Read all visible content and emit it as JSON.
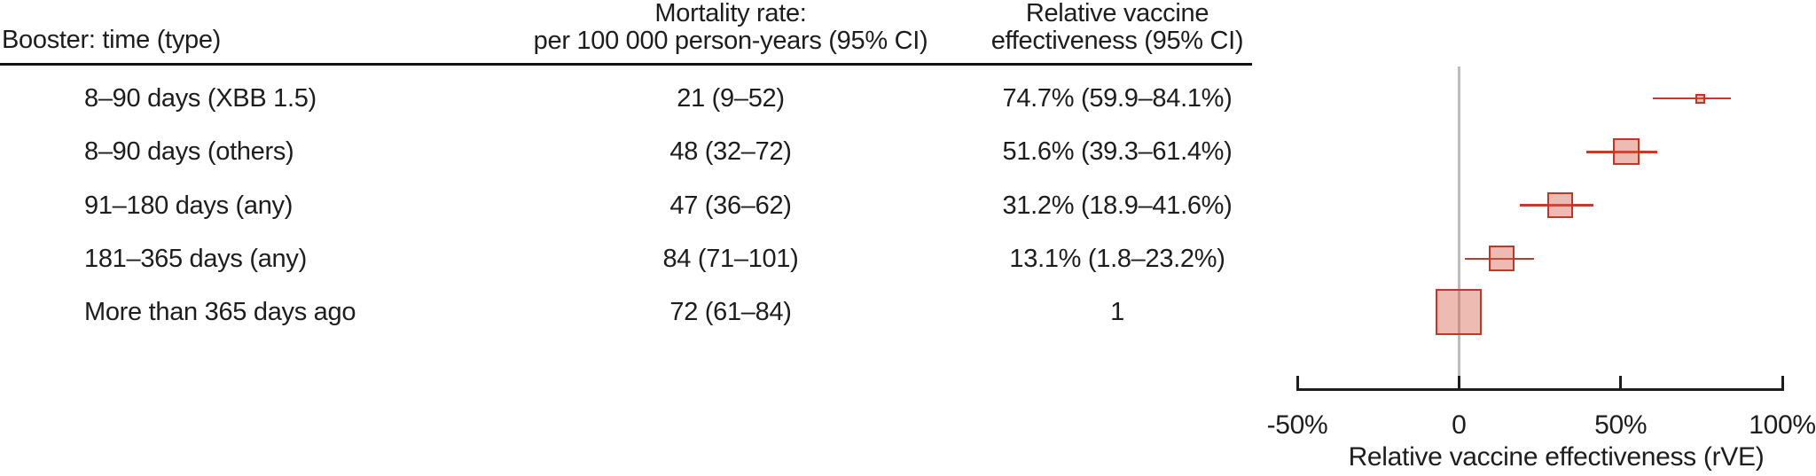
{
  "table": {
    "col1_header": "Booster: time (type)",
    "col2_header_line1": "Mortality rate:",
    "col2_header_line2": "per 100 000 person-years (95% CI)",
    "col3_header_line1": "Relative vaccine",
    "col3_header_line2": "effectiveness (95% CI)",
    "rows": [
      {
        "label": "8–90 days (XBB 1.5)",
        "mortality": "21 (9–52)",
        "rve": "74.7% (59.9–84.1%)"
      },
      {
        "label": "8–90 days (others)",
        "mortality": "48 (32–72)",
        "rve": "51.6% (39.3–61.4%)"
      },
      {
        "label": "91–180 days (any)",
        "mortality": "47 (36–62)",
        "rve": "31.2% (18.9–41.6%)"
      },
      {
        "label": "181–365 days (any)",
        "mortality": "84 (71–101)",
        "rve": "13.1% (1.8–23.2%)"
      },
      {
        "label": "More than 365 days ago",
        "mortality": "72 (61–84)",
        "rve": "1"
      }
    ]
  },
  "chart_data": {
    "type": "scatter",
    "subtype": "forest-plot",
    "xlabel": "Relative vaccine effectiveness (rVE)",
    "xlim": [
      -50,
      100
    ],
    "x_tick_values": [
      -50,
      0,
      50,
      100
    ],
    "x_tick_labels": [
      "-50%",
      "0",
      "50%",
      "100%"
    ],
    "reference_line_x": 0,
    "series": [
      {
        "label": "8–90 days (XBB 1.5)",
        "estimate": 74.7,
        "ci_low": 59.9,
        "ci_high": 84.1,
        "marker_size_px": 11,
        "has_ci": true
      },
      {
        "label": "8–90 days (others)",
        "estimate": 51.6,
        "ci_low": 39.3,
        "ci_high": 61.4,
        "marker_size_px": 30,
        "has_ci": true
      },
      {
        "label": "91–180 days (any)",
        "estimate": 31.2,
        "ci_low": 18.9,
        "ci_high": 41.6,
        "marker_size_px": 29,
        "has_ci": true
      },
      {
        "label": "181–365 days (any)",
        "estimate": 13.1,
        "ci_low": 1.8,
        "ci_high": 23.2,
        "marker_size_px": 29,
        "has_ci": true
      },
      {
        "label": "More than 365 days ago",
        "estimate": 0,
        "ci_low": null,
        "ci_high": null,
        "marker_size_px": 52,
        "has_ci": false
      }
    ]
  },
  "colors": {
    "marker_fill": "rgba(213,94,72,0.42)",
    "marker_border": "#bf372a",
    "ci_line": "#c23b2c",
    "reference_line": "#bcbcbc",
    "axis": "#1d1d1d",
    "text": "#1d1d1d"
  }
}
